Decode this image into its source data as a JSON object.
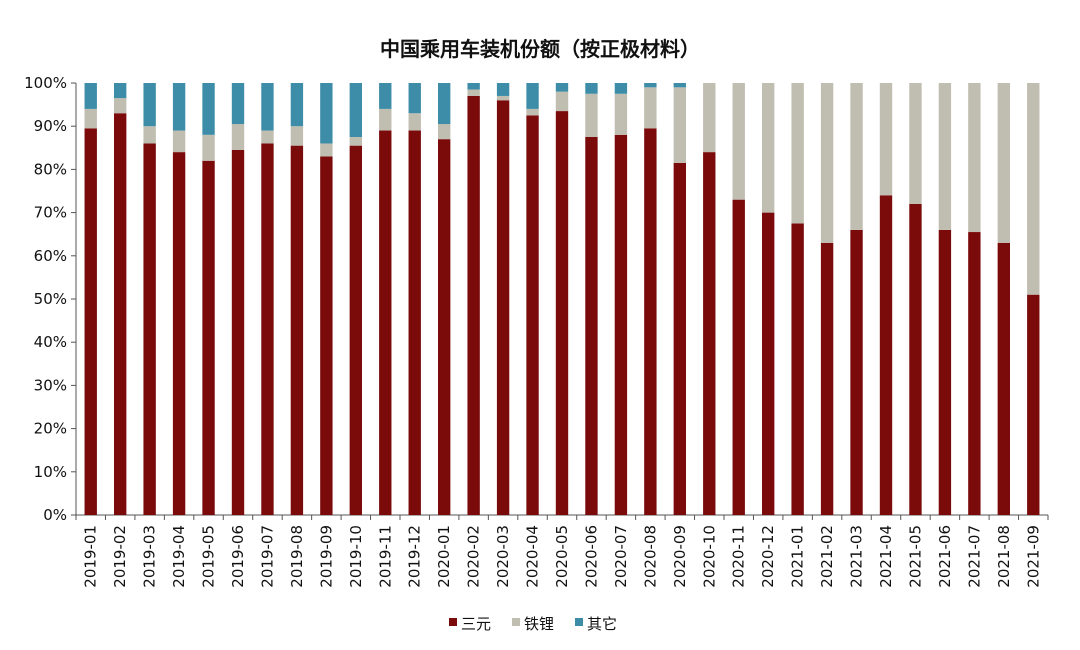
{
  "chart_data": {
    "type": "bar",
    "stacked": true,
    "title": "中国乘用车装机份额（按正极材料）",
    "xlabel": "",
    "ylabel": "",
    "ylim": [
      0,
      100
    ],
    "y_ticks": [
      "0%",
      "10%",
      "20%",
      "30%",
      "40%",
      "50%",
      "60%",
      "70%",
      "80%",
      "90%",
      "100%"
    ],
    "grid": false,
    "legend_position": "bottom",
    "categories": [
      "2019-01",
      "2019-02",
      "2019-03",
      "2019-04",
      "2019-05",
      "2019-06",
      "2019-07",
      "2019-08",
      "2019-09",
      "2019-10",
      "2019-11",
      "2019-12",
      "2020-01",
      "2020-02",
      "2020-03",
      "2020-04",
      "2020-05",
      "2020-06",
      "2020-07",
      "2020-08",
      "2020-09",
      "2020-10",
      "2020-11",
      "2020-12",
      "2021-01",
      "2021-02",
      "2021-03",
      "2021-04",
      "2021-05",
      "2021-06",
      "2021-07",
      "2021-08",
      "2021-09"
    ],
    "series": [
      {
        "name": "三元",
        "color": "#7b0a0a",
        "values": [
          89.5,
          93,
          86,
          84,
          82,
          84.5,
          86,
          85.5,
          83,
          85.5,
          89,
          89,
          87,
          97,
          96,
          92.5,
          93.5,
          87.5,
          88,
          89.5,
          81.5,
          84,
          73,
          70,
          67.5,
          63,
          66,
          74,
          72,
          66,
          65.5,
          63,
          51
        ]
      },
      {
        "name": "铁锂",
        "color": "#c0bdb1",
        "values": [
          4.5,
          3.5,
          4,
          5,
          6,
          6,
          3,
          4.5,
          3,
          2,
          5,
          4,
          3.5,
          1.5,
          1,
          1.5,
          4.5,
          10,
          9.5,
          9.5,
          17.5,
          16,
          27,
          30,
          32.5,
          37,
          34,
          26,
          28,
          34,
          34.5,
          37,
          49
        ]
      },
      {
        "name": "其它",
        "color": "#3e8da8",
        "values": [
          6,
          3.5,
          10,
          11,
          12,
          9.5,
          11,
          10,
          14,
          12.5,
          6,
          7,
          9.5,
          1.5,
          3,
          6,
          2,
          2.5,
          2.5,
          1,
          1,
          0,
          0,
          0,
          0,
          0,
          0,
          0,
          0,
          0,
          0,
          0,
          0
        ]
      }
    ]
  }
}
